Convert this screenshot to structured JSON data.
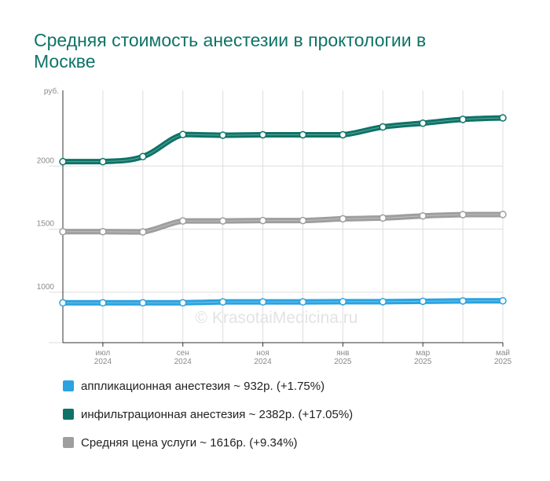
{
  "chart_data": {
    "type": "line",
    "title": "Средняя стоимость анестезии в проктологии в Москве",
    "y_unit_label": "руб.",
    "ylim": [
      600,
      2600
    ],
    "y_ticks": [
      1000,
      1500,
      2000
    ],
    "x_tick_labels": [
      {
        "month": "июл",
        "year": "2024"
      },
      {
        "month": "сен",
        "year": "2024"
      },
      {
        "month": "ноя",
        "year": "2024"
      },
      {
        "month": "янв",
        "year": "2025"
      },
      {
        "month": "мар",
        "year": "2025"
      },
      {
        "month": "май",
        "year": "2025"
      }
    ],
    "x": [
      "2024-06",
      "2024-07",
      "2024-08",
      "2024-09",
      "2024-10",
      "2024-11",
      "2024-12",
      "2025-01",
      "2025-02",
      "2025-03",
      "2025-04",
      "2025-05"
    ],
    "series": [
      {
        "name": "аппликационная анестезия",
        "color": "#2aa3e0",
        "values": [
          916,
          916,
          916,
          916,
          923,
          923,
          923,
          925,
          925,
          928,
          931,
          932
        ]
      },
      {
        "name": "инфильтрационная анестезия",
        "color": "#0e7367",
        "values": [
          2035,
          2035,
          2075,
          2250,
          2245,
          2248,
          2248,
          2248,
          2310,
          2340,
          2370,
          2382
        ]
      },
      {
        "name": "Средняя цена услуги",
        "color": "#9e9e9e",
        "values": [
          1480,
          1480,
          1478,
          1565,
          1565,
          1568,
          1568,
          1582,
          1588,
          1605,
          1615,
          1616
        ]
      }
    ],
    "grid": true,
    "legend_placement": "bottom",
    "watermark": "© KrasotaiMedicina.ru"
  },
  "legend": [
    {
      "text": "аппликационная анестезия ~ 932р. (+1.75%)",
      "color": "#2aa3e0"
    },
    {
      "text": "инфильтрационная анестезия ~ 2382р. (+17.05%)",
      "color": "#0e7367"
    },
    {
      "text": "Средняя цена услуги ~ 1616р. (+9.34%)",
      "color": "#9e9e9e"
    }
  ]
}
